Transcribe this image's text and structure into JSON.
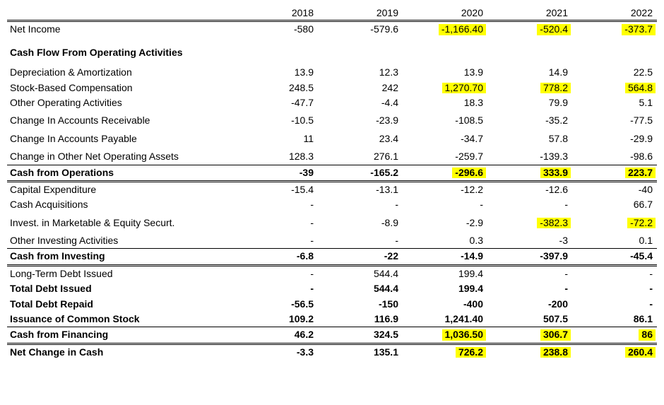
{
  "years": [
    "2018",
    "2019",
    "2020",
    "2021",
    "2022"
  ],
  "highlight_color": "#ffff00",
  "background_color": "#ffffff",
  "text_color": "#000000",
  "font_family": "Arial",
  "font_size_pt": 10.5,
  "rows": [
    {
      "label": "Net Income",
      "values": [
        {
          "v": "-580"
        },
        {
          "v": "-579.6"
        },
        {
          "v": "-1,166.40",
          "hl": true
        },
        {
          "v": "-520.4",
          "hl": true
        },
        {
          "v": "-373.7",
          "hl": true
        }
      ],
      "classes": "double-top"
    },
    {
      "section": "Cash Flow From Operating Activities"
    },
    {
      "label": "Depreciation & Amortization",
      "values": [
        {
          "v": "13.9"
        },
        {
          "v": "12.3"
        },
        {
          "v": "13.9"
        },
        {
          "v": "14.9"
        },
        {
          "v": "22.5"
        }
      ]
    },
    {
      "label": "Stock-Based Compensation",
      "values": [
        {
          "v": "248.5"
        },
        {
          "v": "242"
        },
        {
          "v": "1,270.70",
          "hl": true
        },
        {
          "v": "778.2",
          "hl": true
        },
        {
          "v": "564.8",
          "hl": true
        }
      ]
    },
    {
      "label": "Other Operating Activities",
      "values": [
        {
          "v": "-47.7"
        },
        {
          "v": "-4.4"
        },
        {
          "v": "18.3"
        },
        {
          "v": "79.9"
        },
        {
          "v": "5.1"
        }
      ]
    },
    {
      "gap": true
    },
    {
      "label": "Change In Accounts Receivable",
      "values": [
        {
          "v": "-10.5"
        },
        {
          "v": "-23.9"
        },
        {
          "v": "-108.5"
        },
        {
          "v": "-35.2"
        },
        {
          "v": "-77.5"
        }
      ]
    },
    {
      "gap": true
    },
    {
      "label": "Change In Accounts Payable",
      "values": [
        {
          "v": "11"
        },
        {
          "v": "23.4"
        },
        {
          "v": "-34.7"
        },
        {
          "v": "57.8"
        },
        {
          "v": "-29.9"
        }
      ]
    },
    {
      "gap": true
    },
    {
      "label": "Change in Other Net Operating Assets",
      "values": [
        {
          "v": "128.3"
        },
        {
          "v": "276.1"
        },
        {
          "v": "-259.7"
        },
        {
          "v": "-139.3"
        },
        {
          "v": "-98.6"
        }
      ],
      "classes": "single-bottom"
    },
    {
      "label": "Cash from Operations",
      "values": [
        {
          "v": "-39"
        },
        {
          "v": "-165.2"
        },
        {
          "v": "-296.6",
          "hl": true
        },
        {
          "v": "333.9",
          "hl": true
        },
        {
          "v": "223.7",
          "hl": true
        }
      ],
      "classes": "bold double-bottom"
    },
    {
      "label": "Capital Expenditure",
      "values": [
        {
          "v": "-15.4"
        },
        {
          "v": "-13.1"
        },
        {
          "v": "-12.2"
        },
        {
          "v": "-12.6"
        },
        {
          "v": "-40"
        }
      ]
    },
    {
      "label": "Cash Acquisitions",
      "values": [
        {
          "v": "-"
        },
        {
          "v": "-"
        },
        {
          "v": "-"
        },
        {
          "v": "-"
        },
        {
          "v": "66.7"
        }
      ]
    },
    {
      "gap": true
    },
    {
      "label": "Invest. in Marketable & Equity Securt.",
      "values": [
        {
          "v": "-"
        },
        {
          "v": "-8.9"
        },
        {
          "v": "-2.9"
        },
        {
          "v": "-382.3",
          "hl": true
        },
        {
          "v": "-72.2",
          "hl": true
        }
      ]
    },
    {
      "gap": true
    },
    {
      "label": "Other Investing Activities",
      "values": [
        {
          "v": "-"
        },
        {
          "v": "-"
        },
        {
          "v": "0.3"
        },
        {
          "v": "-3"
        },
        {
          "v": "0.1"
        }
      ],
      "classes": "single-bottom"
    },
    {
      "label": "Cash from Investing",
      "values": [
        {
          "v": "-6.8"
        },
        {
          "v": "-22"
        },
        {
          "v": "-14.9"
        },
        {
          "v": "-397.9"
        },
        {
          "v": "-45.4"
        }
      ],
      "classes": "bold double-bottom"
    },
    {
      "label": "Long-Term Debt Issued",
      "values": [
        {
          "v": "-"
        },
        {
          "v": "544.4"
        },
        {
          "v": "199.4"
        },
        {
          "v": "-"
        },
        {
          "v": "-"
        }
      ]
    },
    {
      "label": "Total Debt Issued",
      "values": [
        {
          "v": "-"
        },
        {
          "v": "544.4"
        },
        {
          "v": "199.4"
        },
        {
          "v": "-"
        },
        {
          "v": "-"
        }
      ],
      "classes": "bold"
    },
    {
      "label": "Total Debt Repaid",
      "values": [
        {
          "v": "-56.5"
        },
        {
          "v": "-150"
        },
        {
          "v": "-400"
        },
        {
          "v": "-200"
        },
        {
          "v": "-"
        }
      ],
      "classes": "bold"
    },
    {
      "label": "Issuance of Common Stock",
      "values": [
        {
          "v": "109.2"
        },
        {
          "v": "116.9"
        },
        {
          "v": "1,241.40"
        },
        {
          "v": "507.5"
        },
        {
          "v": "86.1"
        }
      ],
      "classes": "bold single-bottom"
    },
    {
      "label": "Cash from Financing",
      "values": [
        {
          "v": "46.2"
        },
        {
          "v": "324.5"
        },
        {
          "v": "1,036.50",
          "hl": true
        },
        {
          "v": "306.7",
          "hl": true
        },
        {
          "v": "86",
          "hl": true
        }
      ],
      "classes": "bold double-bottom"
    },
    {
      "label": "Net Change in Cash",
      "values": [
        {
          "v": "-3.3"
        },
        {
          "v": "135.1"
        },
        {
          "v": "726.2",
          "hl": true
        },
        {
          "v": "238.8",
          "hl": true
        },
        {
          "v": "260.4",
          "hl": true
        }
      ],
      "classes": "bold"
    }
  ]
}
